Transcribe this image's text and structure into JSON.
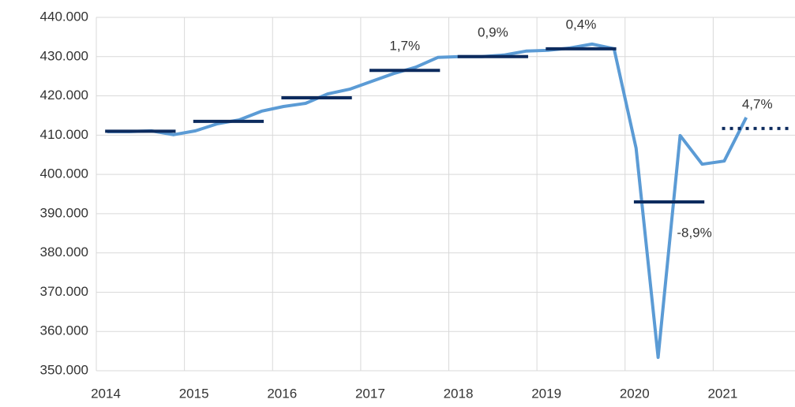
{
  "chart_data": {
    "type": "line",
    "x": [
      2014.125,
      2014.375,
      2014.625,
      2014.875,
      2015.125,
      2015.375,
      2015.625,
      2015.875,
      2016.125,
      2016.375,
      2016.625,
      2016.875,
      2017.125,
      2017.375,
      2017.625,
      2017.875,
      2018.125,
      2018.375,
      2018.625,
      2018.875,
      2019.125,
      2019.375,
      2019.625,
      2019.875,
      2020.125,
      2020.375,
      2020.625,
      2020.875,
      2021.125,
      2021.375
    ],
    "series": [
      {
        "color": "#5b9bd5",
        "values": [
          410900,
          410900,
          411100,
          410100,
          411100,
          412900,
          413900,
          416100,
          417300,
          418100,
          420500,
          421700,
          423700,
          425700,
          427300,
          429800,
          430000,
          430000,
          430400,
          431400,
          431600,
          432200,
          433200,
          432000,
          406700,
          353400,
          409900,
          402600,
          403400,
          414500
        ]
      }
    ],
    "annual": {
      "color": "#0d2b5e",
      "years": [
        2014,
        2015,
        2016,
        2017,
        2018,
        2019,
        2020,
        2021
      ],
      "values": [
        411000,
        413500,
        419500,
        426500,
        430000,
        432000,
        393000,
        411700
      ],
      "projected": [
        false,
        false,
        false,
        false,
        false,
        false,
        false,
        true
      ],
      "annotations": [
        null,
        null,
        null,
        "1,7%",
        "0,9%",
        "0,4%",
        "-8,9%",
        "4,7%"
      ]
    },
    "xlim": [
      2014,
      2022
    ],
    "xticks": [
      2014,
      2015,
      2016,
      2017,
      2018,
      2019,
      2020,
      2021
    ],
    "ylim": [
      350000,
      440000
    ],
    "yticks": [
      {
        "value": 350000,
        "label": "350.000"
      },
      {
        "value": 360000,
        "label": "360.000"
      },
      {
        "value": 370000,
        "label": "370.000"
      },
      {
        "value": 380000,
        "label": "380.000"
      },
      {
        "value": 390000,
        "label": "390.000"
      },
      {
        "value": 400000,
        "label": "400.000"
      },
      {
        "value": 410000,
        "label": "410.000"
      },
      {
        "value": 420000,
        "label": "420.000"
      },
      {
        "value": 430000,
        "label": "430.000"
      },
      {
        "value": 440000,
        "label": "440.000"
      }
    ],
    "grid": true
  }
}
